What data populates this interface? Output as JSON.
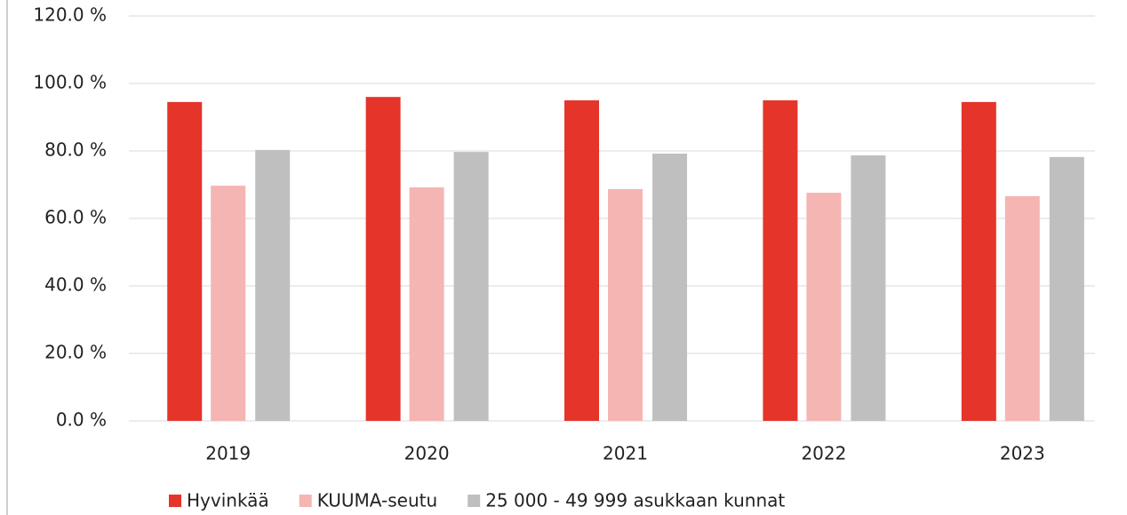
{
  "chart_data": {
    "type": "bar",
    "categories": [
      "2019",
      "2020",
      "2021",
      "2022",
      "2023"
    ],
    "series": [
      {
        "name": "Hyvinkää",
        "color": "#e5342a",
        "values": [
          94.5,
          96.0,
          95.0,
          95.0,
          94.5
        ]
      },
      {
        "name": "KUUMA-seutu",
        "color": "#f4b5b3",
        "values": [
          69.7,
          69.2,
          68.7,
          67.6,
          66.6
        ]
      },
      {
        "name": "25 000 - 49 999 asukkaan kunnat",
        "color": "#bfbfbf",
        "values": [
          80.3,
          79.7,
          79.2,
          78.7,
          78.2
        ]
      }
    ],
    "ylim": [
      0,
      120
    ],
    "yticks": [
      {
        "value": 0,
        "label": "0.0 %"
      },
      {
        "value": 20,
        "label": "20.0 %"
      },
      {
        "value": 40,
        "label": "40.0 %"
      },
      {
        "value": 60,
        "label": "60.0 %"
      },
      {
        "value": 80,
        "label": "80.0 %"
      },
      {
        "value": 100,
        "label": "100.0 %"
      },
      {
        "value": 120,
        "label": "120.0 %"
      }
    ],
    "grid": true,
    "legend": "bottom"
  }
}
